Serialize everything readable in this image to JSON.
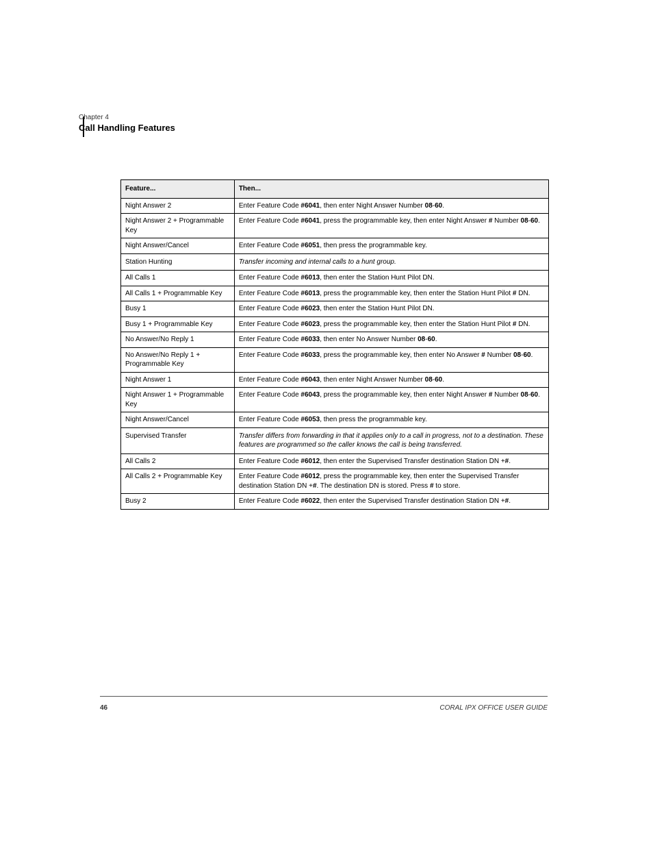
{
  "page_meta": {
    "chapter_label": "Chapter 4",
    "title": "Call Handling Features"
  },
  "table": {
    "header": {
      "col1": "Feature...",
      "col2": "Then..."
    },
    "rows": [
      {
        "c1": "Night Answer 2",
        "c2_parts": [
          "Enter Feature Code ",
          "<b>#6041</b>",
          ", then enter Night Answer Number ",
          "<b>08</b>",
          "-",
          "<b>60</b>",
          "."
        ]
      },
      {
        "c1": "Night Answer 2 + Programmable Key",
        "c2_parts": [
          "Enter Feature Code ",
          "<b>#6041</b>",
          ", press the programmable key, then enter Night Answer ",
          "<b>#</b>",
          " Number ",
          "<b>08</b>",
          "-",
          "<b>60</b>",
          "."
        ]
      },
      {
        "c1": "Night Answer/Cancel",
        "c2_parts": [
          "Enter Feature Code ",
          "<b>#6051</b>",
          ", then press the programmable key."
        ]
      }
    ],
    "section1": {
      "hdr_c1": "Station Hunting",
      "hdr_c2": "Transfer incoming and internal calls to a hunt group.",
      "rows": [
        {
          "c1": "All Calls 1",
          "c2_parts": [
            "Enter Feature Code ",
            "<b>#6013</b>",
            ", then enter the Station Hunt Pilot DN."
          ]
        },
        {
          "c1": "All Calls 1 + Programmable Key",
          "c2_parts": [
            "Enter Feature Code ",
            "<b>#6013</b>",
            ", press the programmable key, then enter the Station Hunt Pilot ",
            "<b>#</b>",
            " DN."
          ]
        },
        {
          "c1": "Busy 1",
          "c2_parts": [
            "Enter Feature Code ",
            "<b>#6023</b>",
            ", then enter the Station Hunt Pilot DN."
          ]
        },
        {
          "c1": "Busy 1 + Programmable Key",
          "c2_parts": [
            "Enter Feature Code ",
            "<b>#6023</b>",
            ", press the programmable key, then enter the Station Hunt Pilot ",
            "<b>#</b>",
            " DN."
          ]
        },
        {
          "c1": "No Answer/No Reply 1",
          "c2_parts": [
            "Enter Feature Code ",
            "<b>#6033</b>",
            ", then enter No Answer Number ",
            "<b>08</b>",
            "-",
            "<b>60</b>",
            "."
          ]
        },
        {
          "c1": "No Answer/No Reply 1 + Programmable Key",
          "c2_parts": [
            "Enter Feature Code ",
            "<b>#6033</b>",
            ", press the programmable key, then enter No Answer ",
            "<b>#</b>",
            " Number ",
            "<b>08</b>",
            "-",
            "<b>60</b>",
            "."
          ]
        },
        {
          "c1": "Night Answer 1",
          "c2_parts": [
            "Enter Feature Code ",
            "<b>#6043</b>",
            ", then enter Night Answer Number ",
            "<b>08</b>",
            "-",
            "<b>60</b>",
            "."
          ]
        },
        {
          "c1": "Night Answer 1 + Programmable Key",
          "c2_parts": [
            "Enter Feature Code ",
            "<b>#6043</b>",
            ", press the programmable key, then enter Night Answer ",
            "<b>#</b>",
            " Number ",
            "<b>08</b>",
            "-",
            "<b>60</b>",
            "."
          ]
        },
        {
          "c1": "Night Answer/Cancel",
          "c2_parts": [
            "Enter Feature Code ",
            "<b>#6053</b>",
            ", then press the programmable key."
          ]
        }
      ]
    },
    "section2": {
      "hdr_c1": "Supervised Transfer",
      "hdr_c2": "Transfer differs from forwarding in that it applies only to a call in progress, not to a destination. These features are programmed so the caller knows the call is being transferred.",
      "rows": [
        {
          "c1": "All Calls 2",
          "c2_parts": [
            "Enter Feature Code ",
            "<b>#6012</b>",
            ", then enter the Supervised Transfer destination Station DN +",
            "<b>#</b>",
            "."
          ]
        },
        {
          "c1": "All Calls 2 + Programmable Key",
          "c2_parts": [
            "Enter Feature Code ",
            "<b>#6012</b>",
            ", press the programmable key, then enter the Supervised Transfer destination Station DN +",
            "<b>#</b>",
            ". The destination DN is stored. Press ",
            "<b>#</b>",
            " to store."
          ]
        },
        {
          "c1": "Busy 2",
          "c2_parts": [
            "Enter Feature Code ",
            "<b>#6022</b>",
            ", then enter the Supervised Transfer destination Station DN +",
            "<b>#</b>",
            "."
          ]
        }
      ]
    }
  },
  "footer": {
    "page_num": "46",
    "doc_title": "CORAL IPX OFFICE USER GUIDE"
  },
  "colors": {
    "header_bg": "#ececec",
    "border": "#000000",
    "text": "#000000",
    "rule": "#555555"
  }
}
